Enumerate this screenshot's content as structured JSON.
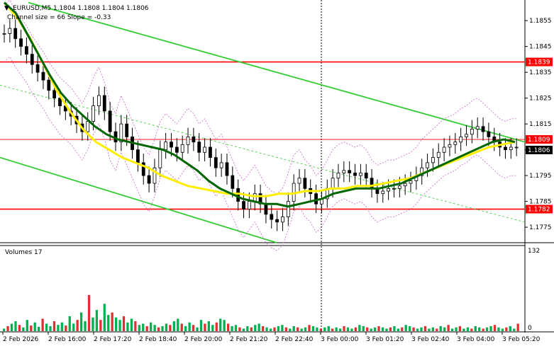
{
  "header": {
    "symbol_line": "EURUSD,M5  1.1804 1.1808 1.1804 1.1806",
    "channel_info": "Channel size = 66 Slope = -0.33",
    "dropdown_glyph": "▼"
  },
  "volumes": {
    "title": "Volumes 17",
    "scale_max": "132",
    "scale_min": "0",
    "bar_color": "#00b050",
    "down_color": "#e03030",
    "values": [
      4,
      8,
      12,
      16,
      10,
      6,
      18,
      9,
      14,
      7,
      20,
      12,
      8,
      16,
      10,
      14,
      9,
      24,
      12,
      18,
      30,
      16,
      58,
      22,
      34,
      18,
      44,
      26,
      30,
      22,
      18,
      24,
      14,
      20,
      16,
      10,
      12,
      8,
      14,
      10,
      6,
      8,
      12,
      10,
      16,
      20,
      12,
      8,
      14,
      10,
      6,
      18,
      12,
      16,
      10,
      14,
      20,
      18,
      12,
      8,
      10,
      6,
      4,
      8,
      6,
      10,
      12,
      8,
      6,
      4,
      6,
      8,
      10,
      6,
      4,
      8,
      6,
      4,
      6,
      10,
      8,
      6,
      4,
      6,
      8,
      4,
      6,
      4,
      8,
      6,
      4,
      6,
      10,
      8,
      6,
      4,
      6,
      8,
      6,
      4,
      6,
      8,
      4,
      6,
      10,
      8,
      6,
      4,
      6,
      8,
      4,
      6,
      4,
      8,
      6,
      10,
      4,
      6,
      8,
      4,
      6,
      4,
      8,
      6,
      4,
      6,
      8,
      10,
      6,
      4,
      6,
      8,
      4,
      12
    ]
  },
  "price_axis": {
    "ticks": [
      "1.1855",
      "1.1845",
      "1.1835",
      "1.1825",
      "1.1815",
      "1.1805",
      "1.1795",
      "1.1785",
      "1.1775"
    ],
    "tick_values": [
      1.1855,
      1.1845,
      1.1835,
      1.1825,
      1.1815,
      1.1805,
      1.1795,
      1.1785,
      1.1775
    ],
    "range": [
      1.1769,
      1.1863
    ],
    "badges": [
      {
        "text": "1.1839",
        "value": 1.1839,
        "bg": "#ff0000",
        "fg": "#ffffff"
      },
      {
        "text": "1.1809",
        "value": 1.1809,
        "bg": "#ff0000",
        "fg": "#ffffff"
      },
      {
        "text": "1.1806",
        "value": 1.1806,
        "bg": "#000000",
        "fg": "#ffffff"
      },
      {
        "text": "1.1782",
        "value": 1.1782,
        "bg": "#ff0000",
        "fg": "#ffffff"
      }
    ]
  },
  "time_axis": {
    "labels": [
      "2 Feb 2026",
      "2 Feb 16:00",
      "2 Feb 17:20",
      "2 Feb 18:40",
      "2 Feb 20:00",
      "2 Feb 21:20",
      "2 Feb 22:40",
      "3 Feb 00:00",
      "3 Feb 01:20",
      "3 Feb 02:40",
      "3 Feb 04:00",
      "3 Feb 05:20"
    ]
  },
  "levels": [
    {
      "name": "resistance",
      "value": 1.1839,
      "color": "#ff0000"
    },
    {
      "name": "current-resistance",
      "value": 1.1809,
      "color": "#ff0000"
    },
    {
      "name": "support",
      "value": 1.1782,
      "color": "#ff0000"
    }
  ],
  "colors": {
    "channel": "#33cc33",
    "ma_fast": "#006600",
    "ma_slow": "#ffee00",
    "envelope": "#cc66cc",
    "candles": "#000000",
    "grid_text": "#000000"
  },
  "price_series": [
    1.185,
    1.1852,
    1.1848,
    1.1845,
    1.1842,
    1.1838,
    1.1835,
    1.1832,
    1.1828,
    1.1825,
    1.1822,
    1.182,
    1.1818,
    1.1815,
    1.1812,
    1.1816,
    1.1822,
    1.1826,
    1.182,
    1.1812,
    1.1808,
    1.1815,
    1.181,
    1.1805,
    1.18,
    1.1795,
    1.1792,
    1.1798,
    1.1805,
    1.1808,
    1.1806,
    1.1804,
    1.1807,
    1.181,
    1.1808,
    1.1804,
    1.1806,
    1.1802,
    1.1798,
    1.18,
    1.1795,
    1.179,
    1.1785,
    1.1782,
    1.1785,
    1.1788,
    1.1784,
    1.178,
    1.1778,
    1.1777,
    1.1779,
    1.1785,
    1.1792,
    1.1794,
    1.179,
    1.1788,
    1.1784,
    1.1786,
    1.179,
    1.1794,
    1.1796,
    1.1797,
    1.1796,
    1.1795,
    1.1796,
    1.1794,
    1.179,
    1.1788,
    1.1789,
    1.179,
    1.179,
    1.1791,
    1.1792,
    1.1793,
    1.1795,
    1.1798,
    1.18,
    1.1802,
    1.1804,
    1.1806,
    1.1807,
    1.1808,
    1.181,
    1.1811,
    1.1813,
    1.1814,
    1.1812,
    1.181,
    1.1808,
    1.1806,
    1.1805,
    1.1806,
    1.1806
  ],
  "ma_fast_series": [
    1.1862,
    1.1858,
    1.185,
    1.1842,
    1.1834,
    1.1827,
    1.1822,
    1.1818,
    1.1814,
    1.1811,
    1.1809,
    1.1808,
    1.1807,
    1.1806,
    1.1805,
    1.1803,
    1.18,
    1.1797,
    1.1793,
    1.179,
    1.1788,
    1.1786,
    1.1785,
    1.1784,
    1.1784,
    1.1783,
    1.1784,
    1.1785,
    1.1786,
    1.1788,
    1.1789,
    1.179,
    1.179,
    1.179,
    1.1791,
    1.1792,
    1.1794,
    1.1796,
    1.1798,
    1.18,
    1.1802,
    1.1804,
    1.1806,
    1.1808,
    1.1809,
    1.1808
  ],
  "ma_slow_series": [
    1.1862,
    1.1856,
    1.1848,
    1.1838,
    1.1828,
    1.182,
    1.1813,
    1.1808,
    1.1805,
    1.1802,
    1.18,
    1.1798,
    1.1795,
    1.1793,
    1.1791,
    1.179,
    1.1789,
    1.1788,
    1.1788,
    1.1787,
    1.1787,
    1.1788,
    1.1788,
    1.1789,
    1.1789,
    1.179,
    1.179,
    1.1791,
    1.1791,
    1.1792,
    1.1793,
    1.1794,
    1.1796,
    1.1798,
    1.18,
    1.1802,
    1.1804,
    1.1806,
    1.1807,
    1.1808
  ]
}
